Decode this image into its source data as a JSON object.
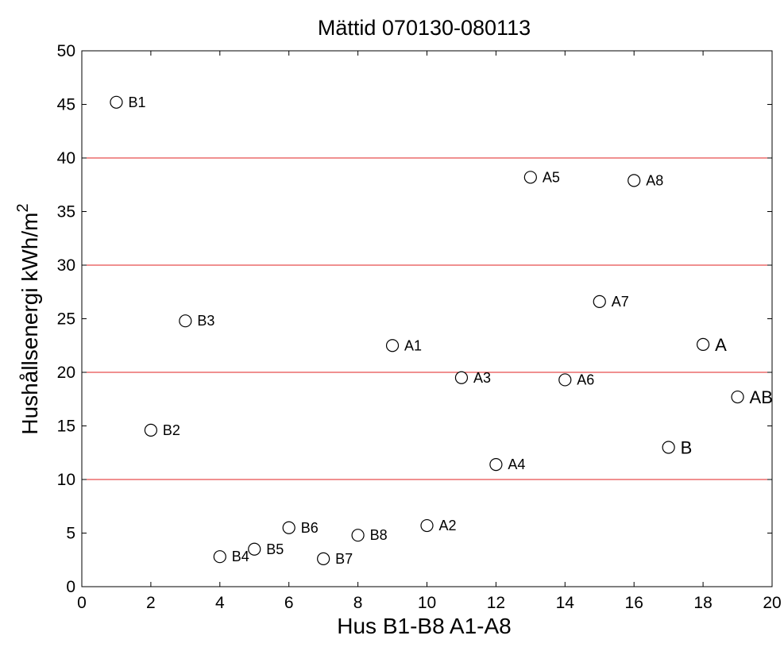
{
  "chart_data": {
    "type": "scatter",
    "title": "Mättid 070130-080113",
    "xlabel": "Hus  B1-B8  A1-A8",
    "ylabel": "Hushållsenergi  kWh/m",
    "ylabel_superscript": "2",
    "xlim": [
      0,
      20
    ],
    "ylim": [
      0,
      50
    ],
    "xticks": [
      0,
      2,
      4,
      6,
      8,
      10,
      12,
      14,
      16,
      18,
      20
    ],
    "yticks": [
      0,
      5,
      10,
      15,
      20,
      25,
      30,
      35,
      40,
      45,
      50
    ],
    "reference_lines_y": [
      10,
      20,
      30,
      40
    ],
    "reference_line_color": "#e02020",
    "marker_color": "#000000",
    "points": [
      {
        "label": "B1",
        "x": 1,
        "y": 45.2
      },
      {
        "label": "B2",
        "x": 2,
        "y": 14.6
      },
      {
        "label": "B3",
        "x": 3,
        "y": 24.8
      },
      {
        "label": "B4",
        "x": 4,
        "y": 2.8
      },
      {
        "label": "B5",
        "x": 5,
        "y": 3.5
      },
      {
        "label": "B6",
        "x": 6,
        "y": 5.5
      },
      {
        "label": "B7",
        "x": 7,
        "y": 2.6
      },
      {
        "label": "B8",
        "x": 8,
        "y": 4.8
      },
      {
        "label": "A1",
        "x": 9,
        "y": 22.5
      },
      {
        "label": "A2",
        "x": 10,
        "y": 5.7
      },
      {
        "label": "A3",
        "x": 11,
        "y": 19.5
      },
      {
        "label": "A4",
        "x": 12,
        "y": 11.4
      },
      {
        "label": "A5",
        "x": 13,
        "y": 38.2
      },
      {
        "label": "A6",
        "x": 14,
        "y": 19.3
      },
      {
        "label": "A7",
        "x": 15,
        "y": 26.6
      },
      {
        "label": "A8",
        "x": 16,
        "y": 37.9
      },
      {
        "label": "B",
        "x": 17,
        "y": 13.0
      },
      {
        "label": "A",
        "x": 18,
        "y": 22.6
      },
      {
        "label": "AB",
        "x": 19,
        "y": 17.7
      }
    ],
    "grid": false,
    "legend": "none"
  }
}
